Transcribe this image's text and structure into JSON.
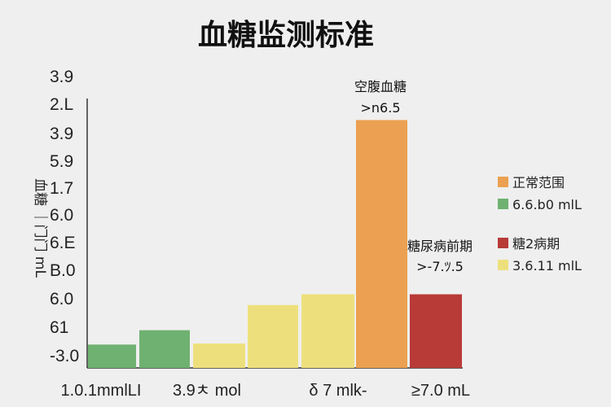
{
  "chart_data": {
    "type": "bar",
    "title": "血糖监测标准",
    "ylabel": "血糖 ｜门门 mL",
    "y_tick_labels": [
      "3.9",
      "2.L",
      "3.9",
      "5.9",
      "1.7",
      "6.0",
      "6.E",
      "B.0",
      "6.0",
      "61",
      "-3.0"
    ],
    "x_tick_labels": [
      "1.0.1mmlLI",
      "3.9ㅊ mol",
      "δ 7 mlk-",
      "≥7.0 mL"
    ],
    "bars": [
      {
        "value": 0.65,
        "color": "#6fb170"
      },
      {
        "value": 1.05,
        "color": "#6fb170"
      },
      {
        "value": 0.68,
        "color": "#ede07c"
      },
      {
        "value": 1.75,
        "color": "#ede07c"
      },
      {
        "value": 2.05,
        "color": "#ede07c"
      },
      {
        "value": 6.9,
        "color": "#eba151"
      },
      {
        "value": 2.05,
        "color": "#b83b37"
      }
    ],
    "y_range": [
      0,
      7.5
    ],
    "annotations": [
      {
        "label": "空腹血糖",
        "sub": ">n6.5",
        "bar": 5
      },
      {
        "label": "糖尿病前期",
        "sub": ">-7.ﾂ.5",
        "bar": 6
      }
    ],
    "legend": [
      {
        "label": "正常范围",
        "color": "#eba151"
      },
      {
        "label": "6.6.b0 mlL",
        "color": "#6fb170"
      },
      {
        "label": "糖2病期",
        "color": "#b83b37"
      },
      {
        "label": "3.6.11 mlL",
        "color": "#ede07c"
      }
    ],
    "legend_position": "right"
  }
}
